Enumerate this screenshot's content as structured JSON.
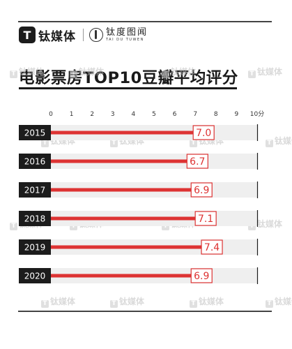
{
  "brand": {
    "logo_glyph": "T",
    "name": "钛媒体",
    "sub_name": "钛度图闻",
    "sub_pinyin": "TAI DU TUWEN"
  },
  "watermark": "钛媒体",
  "chart_data": {
    "type": "bar",
    "orientation": "horizontal",
    "title": "电影票房TOP10豆瓣平均评分",
    "categories": [
      "2015",
      "2016",
      "2017",
      "2018",
      "2019",
      "2020"
    ],
    "values": [
      7.0,
      6.7,
      6.9,
      7.1,
      7.4,
      6.9
    ],
    "value_labels": [
      "7.0",
      "6.7",
      "6.9",
      "7.1",
      "7.4",
      "6.9"
    ],
    "xlim": [
      0,
      10
    ],
    "x_ticks": [
      "0",
      "1",
      "2",
      "3",
      "4",
      "5",
      "6",
      "7",
      "8",
      "9",
      "10分"
    ],
    "colors": {
      "bar": "#dd3333",
      "track": "#efefef",
      "category_bg": "#1c1c1c",
      "label_border": "#dd3333",
      "label_text": "#dd3333"
    }
  }
}
